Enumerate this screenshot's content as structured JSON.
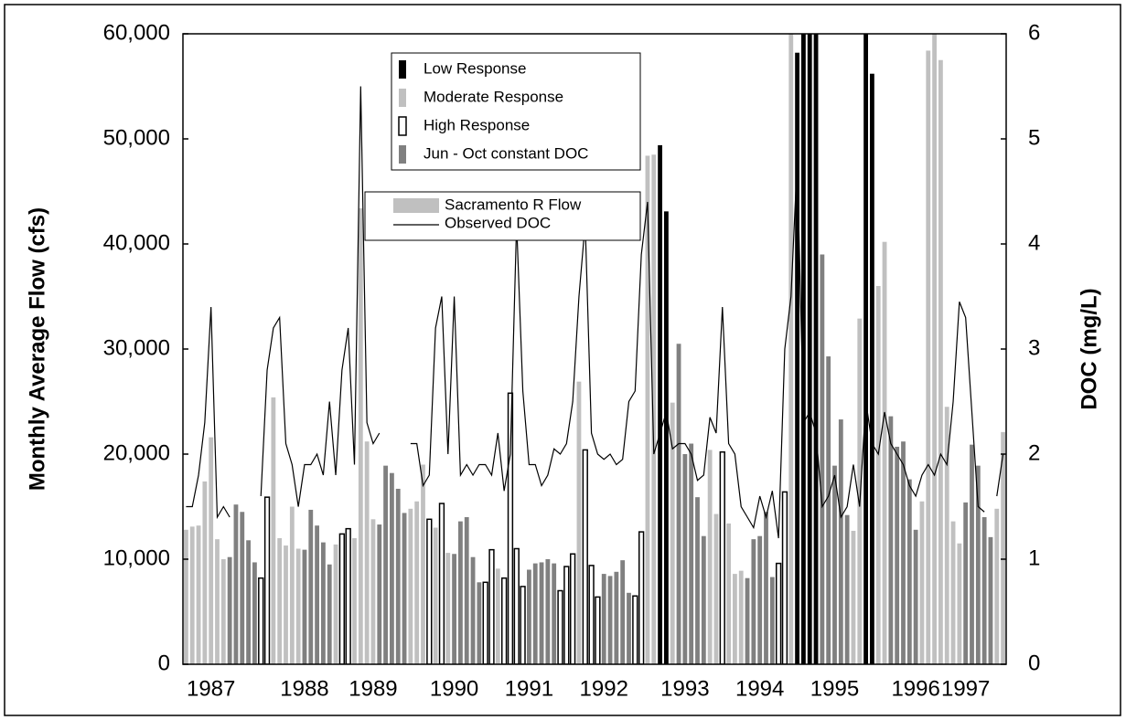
{
  "chart_data": {
    "type": "bar",
    "y_label": "Monthly Average Flow (cfs)",
    "y2_label": "DOC (mg/L)",
    "categories": [
      null,
      null,
      null,
      null,
      "1987",
      null,
      null,
      null,
      null,
      null,
      null,
      null,
      null,
      null,
      null,
      null,
      null,
      null,
      null,
      "1988",
      null,
      null,
      null,
      null,
      null,
      null,
      null,
      null,
      null,
      null,
      "1989",
      null,
      null,
      null,
      null,
      null,
      null,
      null,
      null,
      null,
      null,
      null,
      null,
      "1990",
      null,
      null,
      null,
      null,
      null,
      null,
      null,
      null,
      null,
      null,
      null,
      "1991",
      null,
      null,
      null,
      null,
      null,
      null,
      null,
      null,
      null,
      null,
      null,
      "1992",
      null,
      null,
      null,
      null,
      null,
      null,
      null,
      null,
      null,
      null,
      null,
      null,
      "1993",
      null,
      null,
      null,
      null,
      null,
      null,
      null,
      null,
      null,
      null,
      null,
      "1994",
      null,
      null,
      null,
      null,
      null,
      null,
      null,
      null,
      null,
      null,
      null,
      "1995",
      null,
      null,
      null,
      null,
      null,
      null,
      null,
      null,
      null,
      null,
      null,
      null,
      "1996",
      null,
      null,
      null,
      null,
      null,
      null,
      null,
      "1997",
      null,
      null,
      null,
      null,
      null,
      null
    ],
    "ylim": [
      0,
      60000
    ],
    "yticks": [
      0,
      {
        "value": 10000,
        "label": "10,000"
      },
      {
        "value": 20000,
        "label": "20,000"
      },
      {
        "value": 30000,
        "label": "30,000"
      },
      {
        "value": 40000,
        "label": "40,000"
      },
      {
        "value": 50000,
        "label": "50,000"
      },
      {
        "value": 60000,
        "label": "60,000"
      }
    ],
    "y2lim": [
      0,
      6
    ],
    "y2ticks": [
      0,
      1,
      2,
      3,
      4,
      5,
      6
    ],
    "flow_legend": {
      "name": "Sacramento R Flow",
      "color": "#c0c0c0"
    },
    "series": [
      {
        "name": "Low Response",
        "color": "#000000",
        "values": [
          null,
          null,
          null,
          null,
          null,
          null,
          null,
          null,
          null,
          null,
          null,
          null,
          null,
          null,
          null,
          null,
          null,
          null,
          null,
          null,
          null,
          null,
          null,
          null,
          null,
          null,
          null,
          null,
          null,
          null,
          null,
          null,
          null,
          null,
          null,
          null,
          null,
          null,
          null,
          null,
          null,
          null,
          null,
          null,
          null,
          null,
          null,
          null,
          null,
          null,
          null,
          null,
          null,
          null,
          null,
          null,
          null,
          null,
          null,
          null,
          null,
          null,
          null,
          null,
          null,
          null,
          null,
          null,
          null,
          null,
          null,
          null,
          null,
          null,
          null,
          null,
          49400,
          43100,
          null,
          null,
          null,
          null,
          null,
          null,
          null,
          null,
          null,
          null,
          null,
          null,
          null,
          null,
          null,
          null,
          null,
          null,
          null,
          null,
          58200,
          60500,
          60500,
          60500,
          null,
          null,
          null,
          null,
          null,
          null,
          null,
          60500,
          56200,
          null,
          null,
          null,
          null,
          null,
          null,
          null,
          null,
          null,
          null,
          null,
          null,
          null,
          null,
          null,
          null,
          null,
          null,
          null,
          null,
          null
        ]
      },
      {
        "name": "Moderate Response",
        "color": "#c0c0c0",
        "values": [
          12800,
          13100,
          13200,
          17400,
          21600,
          11900,
          10000,
          null,
          null,
          null,
          null,
          null,
          null,
          null,
          25400,
          12000,
          11300,
          15000,
          11000,
          null,
          null,
          null,
          null,
          null,
          11400,
          null,
          null,
          12000,
          43400,
          21200,
          13800,
          null,
          null,
          null,
          null,
          null,
          14800,
          15500,
          19000,
          null,
          13000,
          null,
          10600,
          null,
          null,
          null,
          null,
          null,
          null,
          null,
          9100,
          null,
          null,
          null,
          null,
          null,
          null,
          null,
          null,
          null,
          null,
          null,
          null,
          26900,
          null,
          null,
          null,
          null,
          null,
          null,
          null,
          null,
          null,
          null,
          48400,
          48500,
          null,
          null,
          24900,
          null,
          null,
          null,
          null,
          null,
          20400,
          14300,
          null,
          13400,
          8600,
          8900,
          null,
          null,
          null,
          null,
          null,
          null,
          null,
          60500,
          null,
          null,
          null,
          null,
          null,
          null,
          null,
          null,
          null,
          12700,
          32900,
          null,
          null,
          36000,
          40200,
          null,
          null,
          null,
          null,
          null,
          15500,
          58400,
          60500,
          57500,
          24500,
          13600,
          11500,
          null,
          null,
          null,
          null,
          null,
          14800,
          22100
        ]
      },
      {
        "name": "High Response",
        "color": "#ffffff",
        "values": [
          null,
          null,
          null,
          null,
          null,
          null,
          null,
          null,
          null,
          null,
          null,
          null,
          8200,
          15900,
          null,
          null,
          null,
          null,
          null,
          null,
          null,
          null,
          null,
          null,
          null,
          12400,
          12900,
          null,
          null,
          null,
          null,
          null,
          null,
          null,
          null,
          null,
          null,
          null,
          null,
          13800,
          null,
          15300,
          null,
          null,
          null,
          null,
          null,
          null,
          7800,
          10900,
          null,
          8200,
          25800,
          11000,
          7400,
          null,
          null,
          null,
          null,
          null,
          7000,
          9300,
          10500,
          null,
          20400,
          9400,
          6400,
          null,
          null,
          null,
          null,
          null,
          6500,
          12600,
          null,
          null,
          null,
          null,
          null,
          null,
          null,
          null,
          null,
          null,
          null,
          null,
          20200,
          null,
          null,
          null,
          null,
          null,
          null,
          null,
          null,
          9600,
          16400,
          null,
          null,
          null,
          null,
          null,
          null,
          null,
          null,
          null,
          null,
          null,
          null,
          null,
          null,
          null,
          null,
          null,
          null,
          null,
          null,
          null,
          null,
          null,
          null,
          null,
          null,
          null,
          null,
          null,
          null,
          null,
          null,
          null,
          null,
          null
        ]
      },
      {
        "name": "Jun - Oct constant DOC",
        "color": "#808080",
        "values": [
          null,
          null,
          null,
          null,
          null,
          null,
          null,
          10200,
          15200,
          14500,
          11800,
          9700,
          null,
          null,
          null,
          null,
          null,
          null,
          null,
          10900,
          14700,
          13200,
          11600,
          9500,
          null,
          null,
          null,
          null,
          null,
          null,
          null,
          13300,
          18900,
          18200,
          16700,
          14400,
          null,
          null,
          null,
          null,
          null,
          null,
          null,
          10500,
          13600,
          14000,
          10200,
          7800,
          null,
          null,
          null,
          null,
          null,
          null,
          null,
          9000,
          9600,
          9700,
          10000,
          9600,
          null,
          null,
          null,
          null,
          null,
          null,
          null,
          8600,
          8400,
          8800,
          9900,
          6800,
          null,
          null,
          null,
          null,
          null,
          null,
          null,
          30500,
          20000,
          21000,
          15900,
          12200,
          null,
          null,
          null,
          null,
          null,
          null,
          8200,
          11900,
          12200,
          14500,
          8300,
          null,
          null,
          null,
          null,
          null,
          null,
          null,
          39000,
          29300,
          18900,
          23300,
          14200,
          null,
          null,
          null,
          null,
          null,
          null,
          23600,
          20700,
          21200,
          17600,
          12800,
          null,
          null,
          null,
          null,
          null,
          null,
          null,
          15400,
          20900,
          18900,
          14000,
          12100,
          null,
          null
        ]
      },
      {
        "name": "Observed DOC",
        "type": "line",
        "axis": "y2",
        "color": "#000000",
        "values": [
          1.5,
          1.5,
          1.8,
          2.3,
          3.4,
          1.4,
          1.5,
          1.4,
          null,
          null,
          null,
          null,
          1.6,
          2.8,
          3.2,
          3.3,
          2.1,
          1.9,
          1.5,
          1.9,
          1.9,
          2.0,
          1.8,
          2.5,
          1.8,
          2.8,
          3.2,
          1.9,
          5.5,
          2.3,
          2.1,
          2.2,
          null,
          null,
          null,
          null,
          2.1,
          2.1,
          1.7,
          1.8,
          3.2,
          3.5,
          2.0,
          3.5,
          1.8,
          1.9,
          1.8,
          1.9,
          1.9,
          1.8,
          2.2,
          1.65,
          2.0,
          4.2,
          2.6,
          1.9,
          1.9,
          1.7,
          1.8,
          2.05,
          2.0,
          2.1,
          2.5,
          3.5,
          4.2,
          2.2,
          2.0,
          1.95,
          2.0,
          1.9,
          1.95,
          2.5,
          2.6,
          3.9,
          4.4,
          2.0,
          2.2,
          2.4,
          2.05,
          2.1,
          2.1,
          2.0,
          1.75,
          1.8,
          2.35,
          2.2,
          3.4,
          2.1,
          2.0,
          1.5,
          1.4,
          1.3,
          1.6,
          1.4,
          1.65,
          1.2,
          3.0,
          3.5,
          4.8,
          2.3,
          2.4,
          2.2,
          1.5,
          1.6,
          1.8,
          1.4,
          1.5,
          1.9,
          1.5,
          2.5,
          2.1,
          2.0,
          2.4,
          2.1,
          2.0,
          1.9,
          1.7,
          1.6,
          1.8,
          1.9,
          1.8,
          2.0,
          1.9,
          2.5,
          3.45,
          3.3,
          2.4,
          1.5,
          1.45,
          null,
          1.6,
          2.0
        ]
      }
    ]
  }
}
